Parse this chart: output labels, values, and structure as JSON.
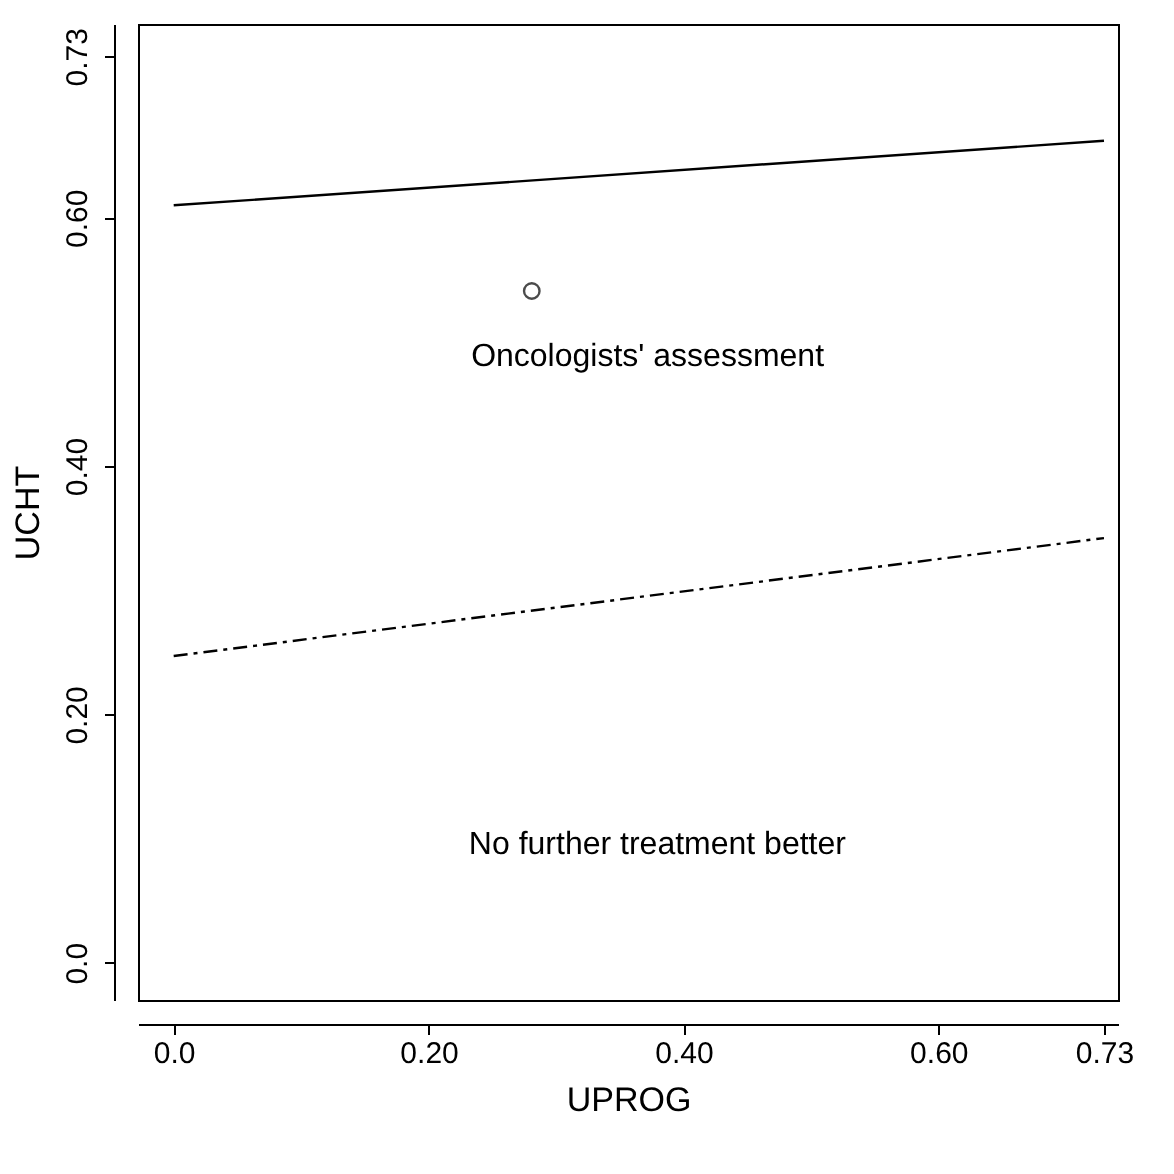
{
  "chart_data": {
    "type": "line",
    "xlabel": "UPROG",
    "ylabel": "UCHT",
    "xlim": [
      -0.028,
      0.741
    ],
    "ylim": [
      -0.03,
      0.756
    ],
    "xticks": [
      {
        "value": 0,
        "label": "0.0"
      },
      {
        "value": 0.2,
        "label": "0.20"
      },
      {
        "value": 0.4,
        "label": "0.40"
      },
      {
        "value": 0.6,
        "label": "0.60"
      },
      0.73
    ],
    "yticks": [
      {
        "value": 0,
        "label": "0.0"
      },
      {
        "value": 0.2,
        "label": "0.20"
      },
      {
        "value": 0.4,
        "label": "0.40"
      },
      {
        "value": 0.6,
        "label": "0.60"
      },
      0.73
    ],
    "series": [
      {
        "color": "#000000",
        "line_style": "solid",
        "x": [
          0,
          0.73
        ],
        "values": [
          0.61,
          0.662
        ]
      },
      {
        "color": "#000000",
        "line_style": "dashed",
        "x": [
          0,
          0.73
        ],
        "values": [
          0.247,
          0.342
        ]
      },
      {
        "type": "scatter",
        "color": "#000000",
        "marker": "circle",
        "x": [
          0.281
        ],
        "values": [
          0.541
        ]
      }
    ],
    "annotations": [
      "Oncologists' assessment",
      "No further treatment better"
    ],
    "grid": false
  }
}
